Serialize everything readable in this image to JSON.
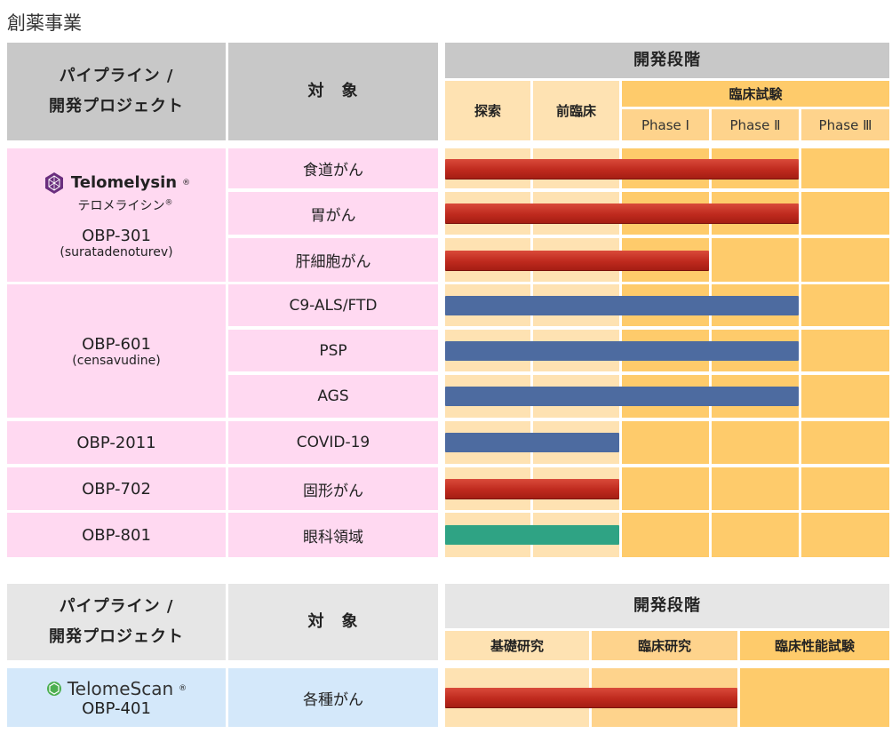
{
  "section_title": "創薬事業",
  "table1": {
    "header": {
      "pipeline_line1": "パイプライン /",
      "pipeline_line2": "開発プロジェクト",
      "target": "対　象",
      "dev_stage": "開発段階",
      "stage_explore": "探索",
      "stage_preclinical": "前臨床",
      "stage_clinical": "臨床試験",
      "phase1": "Phase Ⅰ",
      "phase2": "Phase Ⅱ",
      "phase3": "Phase Ⅲ"
    },
    "projects": {
      "p301": {
        "brand_name": "Telomelysin",
        "brand_mark": "®",
        "brand_kana": "テロメライシン",
        "code": "OBP-301",
        "generic": "(suratadenoturev)"
      },
      "p601": {
        "code": "OBP-601",
        "generic": "(censavudine)"
      },
      "p2011": {
        "code": "OBP-2011"
      },
      "p702": {
        "code": "OBP-702"
      },
      "p801": {
        "code": "OBP-801"
      }
    },
    "targets": [
      "食道がん",
      "胃がん",
      "肝細胞がん",
      "C9-ALS/FTD",
      "PSP",
      "AGS",
      "COVID-19",
      "固形がん",
      "眼科領域"
    ],
    "progress_stage_units": [
      4,
      4,
      3,
      4,
      4,
      4,
      2,
      2,
      2
    ],
    "bar_colors": [
      "#c0392b",
      "#c0392b",
      "#c0392b",
      "#4d6ba0",
      "#4d6ba0",
      "#4d6ba0",
      "#4d6ba0",
      "#c0392b",
      "#2fa384"
    ]
  },
  "table2": {
    "header": {
      "pipeline_line1": "パイプライン /",
      "pipeline_line2": "開発プロジェクト",
      "target": "対　象",
      "dev_stage": "開発段階",
      "stage_basic": "基礎研究",
      "stage_clinical_research": "臨床研究",
      "stage_clinical_perf": "臨床性能試験"
    },
    "project": {
      "brand_name": "TelomeScan",
      "brand_mark": "®",
      "code": "OBP-401",
      "target": "各種がん",
      "progress_stage_units": 2,
      "bar_color": "#c0392b"
    }
  }
}
